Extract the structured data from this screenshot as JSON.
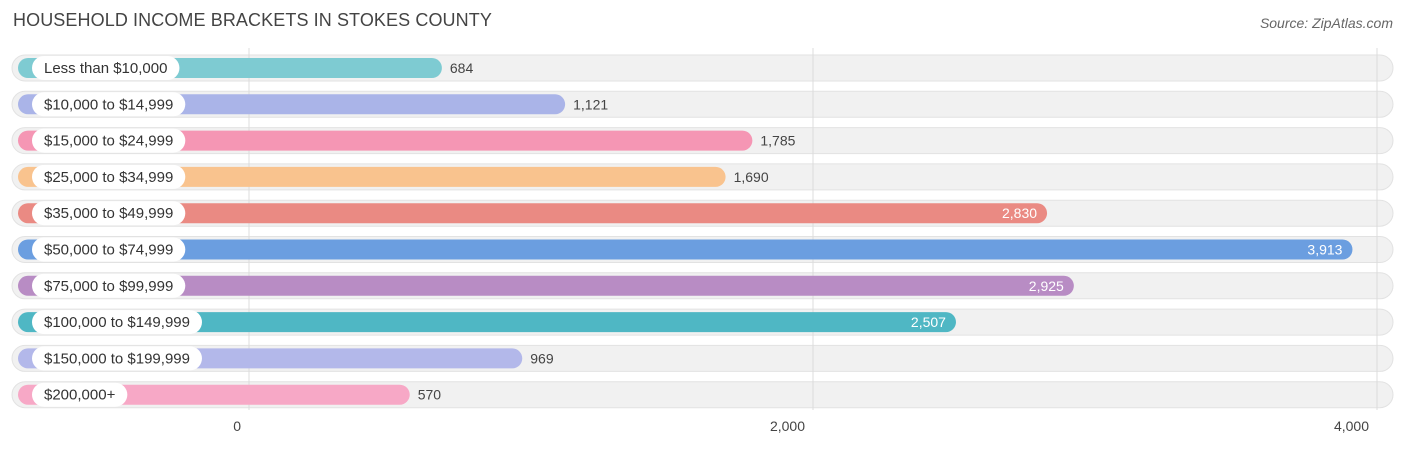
{
  "header": {
    "title": "HOUSEHOLD INCOME BRACKETS IN STOKES COUNTY",
    "source": "Source: ZipAtlas.com"
  },
  "chart_data": {
    "type": "bar",
    "orientation": "horizontal",
    "title": "HOUSEHOLD INCOME BRACKETS IN STOKES COUNTY",
    "xlabel": "",
    "ylabel": "",
    "xlim": [
      0,
      4000
    ],
    "x_ticks": [
      {
        "value": 0,
        "label": "0"
      },
      {
        "value": 2000,
        "label": "2,000"
      },
      {
        "value": 4000,
        "label": "4,000"
      }
    ],
    "grid": true,
    "legend": "none",
    "categories": [
      "Less than $10,000",
      "$10,000 to $14,999",
      "$15,000 to $24,999",
      "$25,000 to $34,999",
      "$35,000 to $49,999",
      "$50,000 to $74,999",
      "$75,000 to $99,999",
      "$100,000 to $149,999",
      "$150,000 to $199,999",
      "$200,000+"
    ],
    "values": [
      684,
      1121,
      1785,
      1690,
      2830,
      3913,
      2925,
      2507,
      969,
      570
    ],
    "value_labels": [
      "684",
      "1,121",
      "1,785",
      "1,690",
      "2,830",
      "3,913",
      "2,925",
      "2,507",
      "969",
      "570"
    ],
    "colors": [
      "#7ecbd2",
      "#aab4e8",
      "#f596b4",
      "#f9c38e",
      "#ea8a83",
      "#6b9ee0",
      "#b88cc4",
      "#4fb7c4",
      "#b3b8ea",
      "#f7a8c6"
    ]
  }
}
